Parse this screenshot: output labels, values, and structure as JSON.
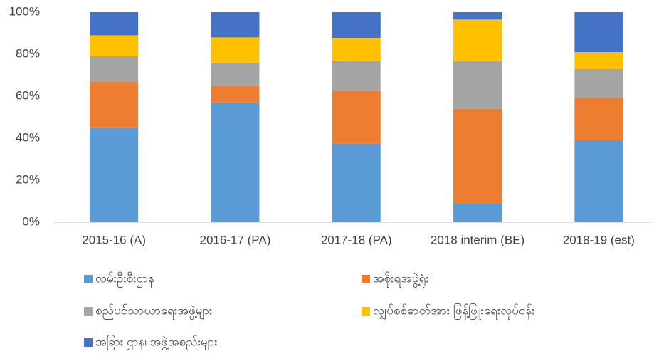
{
  "chart_data": {
    "type": "stacked_bar",
    "categories": [
      "2015-16 (A)",
      "2016-17 (PA)",
      "2017-18 (PA)",
      "2018 interim (BE)",
      "2018-19 (est)"
    ],
    "series": [
      {
        "name": "လမ်းဦးစီးဌာန",
        "color": "#5b9bd5",
        "values": [
          45,
          57,
          37.5,
          9,
          39
        ]
      },
      {
        "name": "အစိုးရအဖွဲ့ရုံး",
        "color": "#ed7d31",
        "values": [
          22,
          8,
          25,
          45,
          20
        ]
      },
      {
        "name": "စည်ပင်သာယာရေးအဖွဲ့များ",
        "color": "#a5a5a5",
        "values": [
          12,
          11,
          14.5,
          23,
          14
        ]
      },
      {
        "name": "လျှပ်စစ်ဓာတ်အား ဖြန့်ဖြူးရေးလုပ်ငန်း",
        "color": "#ffc000",
        "values": [
          10,
          12,
          10.5,
          19.5,
          8
        ]
      },
      {
        "name": "အခြား ဌာန၊ အဖွဲ့အစည်းများ",
        "color": "#4472c4",
        "values": [
          11,
          12,
          12.5,
          3.5,
          19
        ]
      }
    ],
    "ylim": [
      0,
      100
    ],
    "yticks": [
      {
        "value": 0,
        "label": "0%"
      },
      {
        "value": 20,
        "label": "20%"
      },
      {
        "value": 40,
        "label": "40%"
      },
      {
        "value": 60,
        "label": "60%"
      },
      {
        "value": 80,
        "label": "80%"
      },
      {
        "value": 100,
        "label": "100%"
      }
    ],
    "grid": false,
    "legend": "bottom"
  }
}
